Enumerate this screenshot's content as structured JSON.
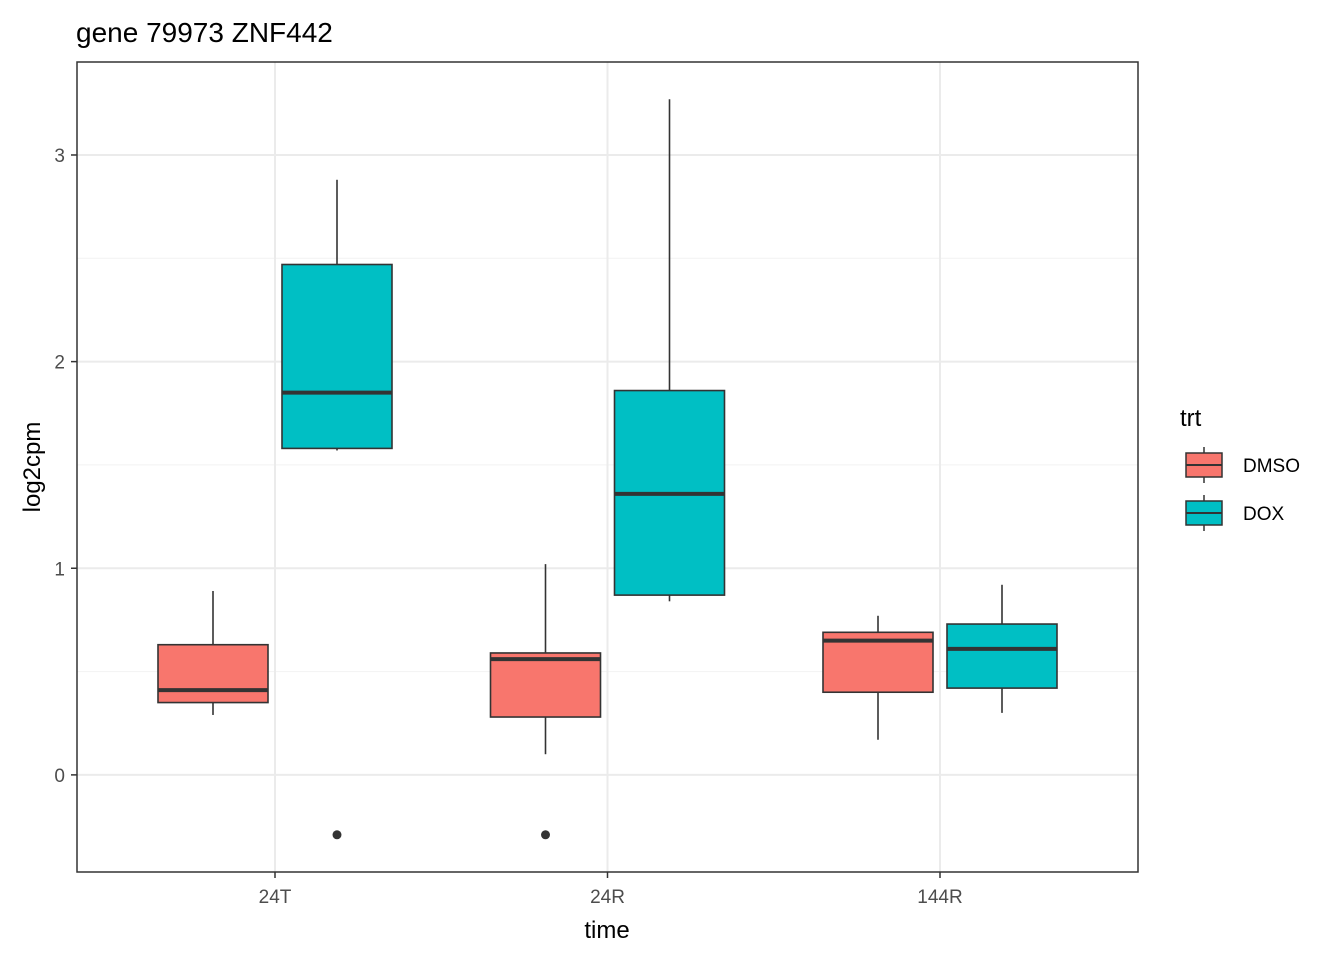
{
  "chart_data": {
    "type": "boxplot",
    "title": "gene 79973 ZNF442",
    "xlabel": "time",
    "ylabel": "log2cpm",
    "categories": [
      "24T",
      "24R",
      "144R"
    ],
    "ylim": [
      -0.47,
      3.45
    ],
    "yticks": [
      0,
      1,
      2,
      3
    ],
    "grid": true,
    "legend": {
      "title": "trt",
      "placement": "right"
    },
    "series": [
      {
        "name": "DMSO",
        "color": "#F8766D",
        "boxes": [
          {
            "category": "24T",
            "whisker_low": 0.29,
            "q1": 0.35,
            "median": 0.41,
            "q3": 0.63,
            "whisker_high": 0.89,
            "outliers": []
          },
          {
            "category": "24R",
            "whisker_low": 0.1,
            "q1": 0.28,
            "median": 0.56,
            "q3": 0.59,
            "whisker_high": 1.02,
            "outliers": [
              -0.29
            ]
          },
          {
            "category": "144R",
            "whisker_low": 0.17,
            "q1": 0.4,
            "median": 0.65,
            "q3": 0.69,
            "whisker_high": 0.77,
            "outliers": []
          }
        ]
      },
      {
        "name": "DOX",
        "color": "#00BFC4",
        "boxes": [
          {
            "category": "24T",
            "whisker_low": 1.57,
            "q1": 1.58,
            "median": 1.85,
            "q3": 2.47,
            "whisker_high": 2.88,
            "outliers": [
              -0.29
            ]
          },
          {
            "category": "24R",
            "whisker_low": 0.84,
            "q1": 0.87,
            "median": 1.36,
            "q3": 1.86,
            "whisker_high": 3.27,
            "outliers": []
          },
          {
            "category": "144R",
            "whisker_low": 0.3,
            "q1": 0.42,
            "median": 0.61,
            "q3": 0.73,
            "whisker_high": 0.92,
            "outliers": []
          }
        ]
      }
    ]
  }
}
